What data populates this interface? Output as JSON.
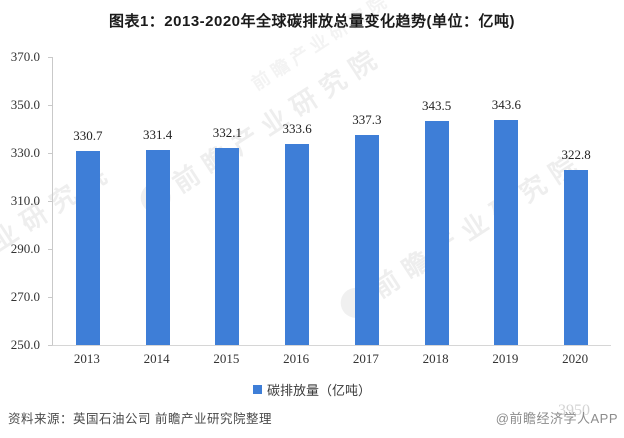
{
  "title": "图表1：2013-2020年全球碳排放总量变化趋势(单位：亿吨)",
  "chart_data": {
    "type": "bar",
    "title": "图表1：2013-2020年全球碳排放总量变化趋势(单位：亿吨)",
    "categories": [
      "2013",
      "2014",
      "2015",
      "2016",
      "2017",
      "2018",
      "2019",
      "2020"
    ],
    "values": [
      330.7,
      331.4,
      332.1,
      333.6,
      337.3,
      343.5,
      343.6,
      322.8
    ],
    "series_name": "碳排放量（亿吨）",
    "xlabel": "",
    "ylabel": "",
    "ylim": [
      250.0,
      370.0
    ],
    "ytick_step": 20.0,
    "ytick_labels": [
      "370.0",
      "350.0",
      "330.0",
      "310.0",
      "290.0",
      "270.0",
      "250.0"
    ],
    "grid": false,
    "legend_position": "bottom",
    "bar_color": "#3E7ED7",
    "value_label_decimals": 1
  },
  "legend": {
    "swatch_color": "#3E7ED7",
    "label": "碳排放量（亿吨）"
  },
  "watermark": {
    "text": "前瞻产业研究院"
  },
  "footer": {
    "source": "资料来源：英国石油公司 前瞻产业研究院整理",
    "credit": "@前瞻经济学人APP",
    "overlay": "3950"
  }
}
